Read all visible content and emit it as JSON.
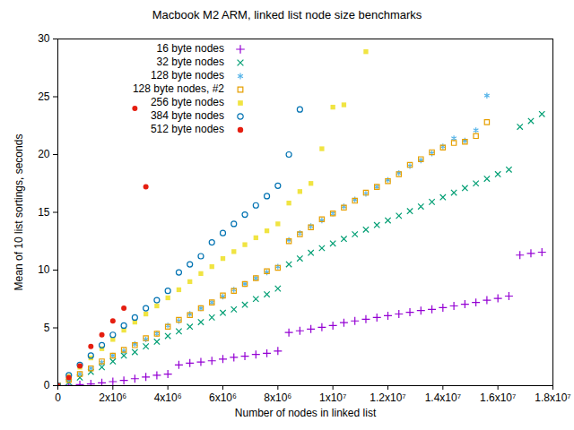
{
  "chart_data": {
    "type": "scatter",
    "title": "Macbook M2 ARM, linked list node size benchmarks",
    "x_label": "Number of nodes in linked list",
    "y_label": "Mean of 10 list sortings, seconds",
    "xlim": [
      0,
      18000000
    ],
    "ylim": [
      0,
      30
    ],
    "xticks": [
      0,
      {
        "value": 2000000,
        "label": "2x10⁶"
      },
      {
        "value": 4000000,
        "label": "4x10⁶"
      },
      {
        "value": 6000000,
        "label": "6x10⁶"
      },
      {
        "value": 8000000,
        "label": "8x10⁶"
      },
      {
        "value": 10000000,
        "label": "1x10⁷"
      },
      {
        "value": 12000000,
        "label": "1.2x10⁷"
      },
      {
        "value": 14000000,
        "label": "1.4x10⁷"
      },
      {
        "value": 16000000,
        "label": "1.6x10⁷"
      },
      {
        "value": 18000000,
        "label": "1.8x10⁷"
      }
    ],
    "yticks": [
      0,
      5,
      10,
      15,
      20,
      25,
      30
    ],
    "grid": false,
    "legend": "top-left",
    "series": [
      {
        "name": "16 byte nodes",
        "color": "#9400d3",
        "marker": "plus",
        "x": [
          0,
          400000,
          800000,
          1200000,
          1600000,
          2000000,
          2400000,
          2800000,
          3200000,
          3600000,
          4000000,
          4400000,
          4800000,
          5200000,
          5600000,
          6000000,
          6400000,
          6800000,
          7200000,
          7600000,
          8000000,
          8400000,
          8800000,
          9200000,
          9600000,
          10000000,
          10400000,
          10800000,
          11200000,
          11600000,
          12000000,
          12400000,
          12800000,
          13200000,
          13600000,
          14000000,
          14400000,
          14800000,
          15200000,
          15600000,
          16000000,
          16400000,
          16800000,
          17200000,
          17600000
        ],
        "values": [
          0,
          0.03,
          0.08,
          0.15,
          0.25,
          0.35,
          0.45,
          0.6,
          0.75,
          0.9,
          1.0,
          1.8,
          1.95,
          2.05,
          2.15,
          2.3,
          2.45,
          2.55,
          2.7,
          2.8,
          3.0,
          4.6,
          4.75,
          4.9,
          5.05,
          5.2,
          5.45,
          5.6,
          5.75,
          5.9,
          6.05,
          6.2,
          6.35,
          6.5,
          6.6,
          6.75,
          6.9,
          7.05,
          7.2,
          7.4,
          7.55,
          7.75,
          11.3,
          11.45,
          11.55
        ]
      },
      {
        "name": "32 byte nodes",
        "color": "#009e73",
        "marker": "times",
        "x": [
          0,
          400000,
          800000,
          1200000,
          1600000,
          2000000,
          2400000,
          2800000,
          3200000,
          3600000,
          4000000,
          4400000,
          4800000,
          5200000,
          5600000,
          6000000,
          6400000,
          6800000,
          7200000,
          7600000,
          8000000,
          8400000,
          8800000,
          9200000,
          9600000,
          10000000,
          10400000,
          10800000,
          11200000,
          11600000,
          12000000,
          12400000,
          12800000,
          13200000,
          13600000,
          14000000,
          14400000,
          14800000,
          15200000,
          15600000,
          16000000,
          16400000,
          16800000,
          17200000,
          17600000
        ],
        "values": [
          0,
          0.3,
          0.7,
          1.2,
          1.6,
          2.1,
          2.6,
          2.9,
          3.4,
          3.8,
          4.3,
          4.7,
          5.1,
          5.5,
          5.9,
          6.3,
          6.6,
          7.0,
          7.5,
          7.9,
          8.4,
          10.5,
          11.0,
          11.5,
          11.9,
          12.3,
          12.7,
          13.1,
          13.5,
          13.9,
          14.3,
          14.7,
          15.1,
          15.5,
          15.9,
          16.3,
          16.7,
          17.1,
          17.5,
          17.9,
          18.3,
          18.7,
          22.4,
          22.9,
          23.5
        ]
      },
      {
        "name": "128 byte nodes",
        "color": "#56b4e9",
        "marker": "asterisk",
        "x": [
          0,
          400000,
          800000,
          1200000,
          1600000,
          2000000,
          2400000,
          2800000,
          3200000,
          3600000,
          4000000,
          4400000,
          4800000,
          5200000,
          5600000,
          6000000,
          6400000,
          6800000,
          7200000,
          7600000,
          8000000,
          8400000,
          8800000,
          9200000,
          9600000,
          10000000,
          10400000,
          10800000,
          11200000,
          11600000,
          12000000,
          12400000,
          12800000,
          13200000,
          13600000,
          14000000,
          14400000,
          14800000,
          15200000,
          15600000
        ],
        "values": [
          0,
          0.5,
          1.0,
          1.5,
          2.0,
          2.6,
          3.0,
          3.6,
          4.0,
          4.5,
          5.2,
          5.6,
          6.2,
          6.7,
          7.2,
          7.7,
          8.3,
          8.8,
          9.3,
          9.8,
          10.3,
          12.6,
          13.2,
          13.8,
          14.3,
          14.9,
          15.5,
          16.1,
          16.6,
          17.2,
          17.8,
          18.4,
          19.0,
          19.5,
          20.1,
          20.7,
          21.4,
          21.2,
          22.1,
          25.1
        ]
      },
      {
        "name": "128 byte nodes, #2",
        "color": "#e69f00",
        "marker": "open_square",
        "x": [
          0,
          400000,
          800000,
          1200000,
          1600000,
          2000000,
          2400000,
          2800000,
          3200000,
          3600000,
          4000000,
          4400000,
          4800000,
          5200000,
          5600000,
          6000000,
          6400000,
          6800000,
          7200000,
          7600000,
          8000000,
          8400000,
          8800000,
          9200000,
          9600000,
          10000000,
          10400000,
          10800000,
          11200000,
          11600000,
          12000000,
          12400000,
          12800000,
          13200000,
          13600000,
          14000000,
          14400000,
          14800000,
          15200000,
          15600000
        ],
        "values": [
          0,
          0.5,
          1.0,
          1.5,
          2.1,
          2.6,
          3.1,
          3.5,
          4.1,
          4.5,
          5.1,
          5.7,
          6.1,
          6.7,
          7.2,
          7.8,
          8.2,
          8.8,
          9.3,
          9.9,
          10.2,
          12.5,
          13.1,
          13.7,
          14.4,
          14.9,
          15.4,
          16.0,
          16.7,
          17.2,
          17.7,
          18.3,
          19.1,
          19.6,
          20.2,
          20.6,
          21.0,
          21.1,
          21.6,
          22.8
        ]
      },
      {
        "name": "256 byte nodes",
        "color": "#f0e442",
        "marker": "square",
        "x": [
          0,
          400000,
          800000,
          1200000,
          1600000,
          2000000,
          2400000,
          2800000,
          3200000,
          3600000,
          4000000,
          4400000,
          4800000,
          5200000,
          5600000,
          6000000,
          6400000,
          6800000,
          7200000,
          7600000,
          8000000,
          8400000,
          8800000,
          9200000,
          9600000,
          10000000,
          10400000,
          11200000
        ],
        "values": [
          0,
          0.8,
          1.6,
          2.4,
          3.2,
          4.0,
          4.8,
          5.5,
          6.2,
          6.9,
          7.6,
          8.3,
          9.0,
          9.7,
          10.3,
          11.0,
          11.6,
          12.2,
          12.8,
          13.4,
          14.0,
          15.8,
          16.8,
          17.5,
          20.5,
          24.1,
          24.3,
          28.9
        ]
      },
      {
        "name": "384 byte nodes",
        "color": "#0072b2",
        "marker": "open_circle",
        "x": [
          0,
          400000,
          800000,
          1200000,
          1600000,
          2000000,
          2400000,
          2800000,
          3200000,
          3600000,
          4000000,
          4400000,
          4800000,
          5200000,
          5600000,
          6000000,
          6400000,
          6800000,
          7200000,
          7600000,
          8000000,
          8400000,
          8800000
        ],
        "values": [
          0,
          0.9,
          1.8,
          2.6,
          3.5,
          4.4,
          5.2,
          5.9,
          6.7,
          7.4,
          8.2,
          9.8,
          10.5,
          11.2,
          12.4,
          13.2,
          14.0,
          14.8,
          15.6,
          16.4,
          17.3,
          20.0,
          23.9
        ]
      },
      {
        "name": "512 byte nodes",
        "color": "#e51e10",
        "marker": "circle",
        "x": [
          0,
          400000,
          800000,
          1200000,
          1600000,
          2000000,
          2400000,
          2800000,
          3200000
        ],
        "values": [
          0,
          0.7,
          1.7,
          3.4,
          4.4,
          5.6,
          6.7,
          24.0,
          17.2
        ]
      }
    ]
  }
}
